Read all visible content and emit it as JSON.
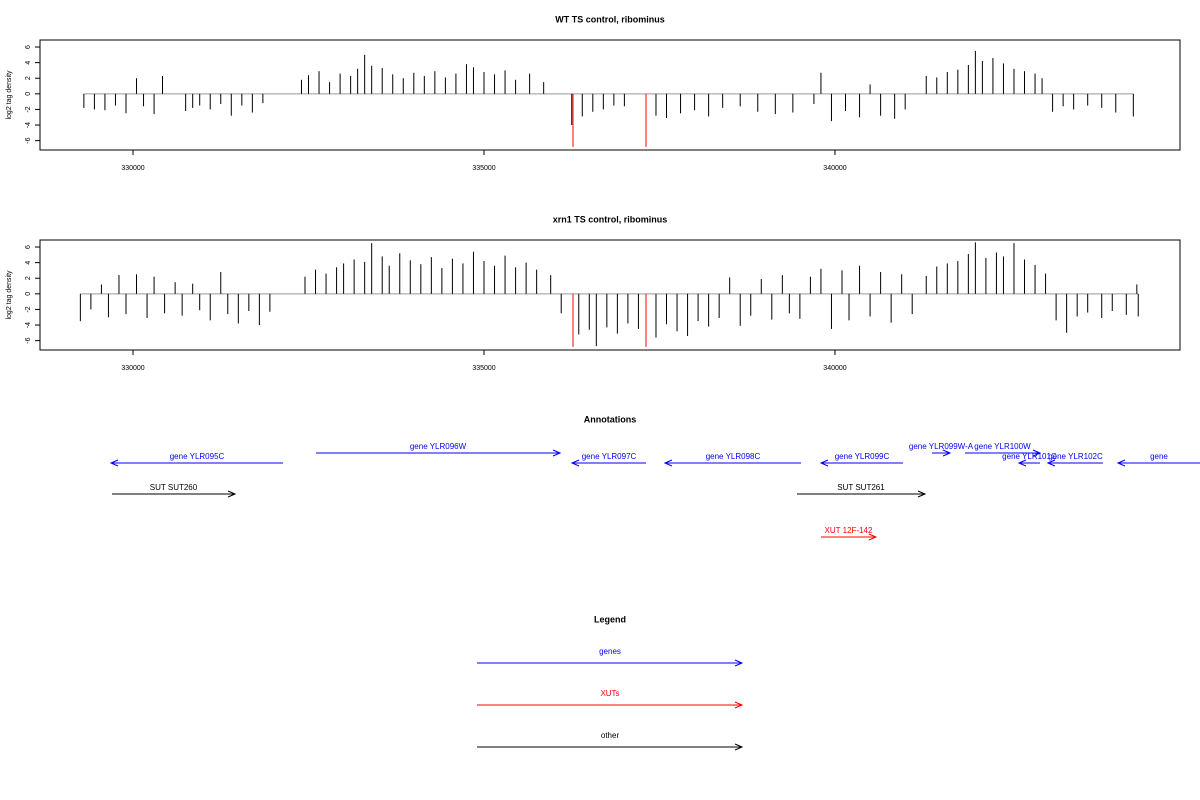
{
  "chart_data": [
    {
      "type": "bar",
      "title": "WT TS control, ribominus",
      "ylabel": "log2 tag density",
      "xlim": [
        328675,
        344915
      ],
      "ylim": [
        -7.2,
        6.9
      ],
      "xticks": [
        330000,
        335000,
        340000
      ],
      "yticks": [
        -6,
        -4,
        -2,
        0,
        2,
        4,
        6
      ],
      "series": [
        {
          "color": "#000000",
          "x": [
            329300,
            329450,
            329600,
            329750,
            329900,
            330050,
            330150,
            330300,
            330420,
            330750,
            330850,
            330950,
            331100,
            331250,
            331400,
            331550,
            331700,
            331850,
            332400,
            332500,
            332650,
            332800,
            332950,
            333100,
            333200,
            333300,
            333400,
            333550,
            333700,
            333850,
            334000,
            334150,
            334300,
            334450,
            334600,
            334750,
            334850,
            335000,
            335150,
            335300,
            335450,
            335650,
            335850,
            336250,
            336400,
            336550,
            336700,
            336850,
            337000,
            337450,
            337600,
            337800,
            338000,
            338200,
            338400,
            338650,
            338900,
            339150,
            339400,
            339700,
            339800,
            339950,
            340150,
            340350,
            340500,
            340650,
            340850,
            341000,
            341300,
            341450,
            341600,
            341750,
            341900,
            342000,
            342100,
            342250,
            342400,
            342550,
            342700,
            342850,
            342950,
            343100,
            343250,
            343400,
            343600,
            343800,
            344000,
            344250
          ],
          "values": [
            -1.8,
            -2,
            -2.1,
            -1.5,
            -2.5,
            2,
            -1.6,
            -2.6,
            2.3,
            -2.2,
            -1.8,
            -1.5,
            -2,
            -1.3,
            -2.8,
            -1.5,
            -2.4,
            -1.2,
            1.8,
            2.4,
            2.9,
            1.5,
            2.6,
            2.3,
            3.2,
            5,
            3.6,
            3.3,
            2.5,
            2,
            2.7,
            2.3,
            2.9,
            2.1,
            2.6,
            3.8,
            3.4,
            2.8,
            2.5,
            3,
            1.8,
            2.6,
            1.5,
            -4,
            -2.9,
            -2.3,
            -2,
            -1.5,
            -1.6,
            -2.8,
            -3.1,
            -2.5,
            -2.1,
            -2.9,
            -1.8,
            -1.6,
            -2.3,
            -2.6,
            -2.4,
            -1.3,
            2.7,
            -3.5,
            -2.2,
            -3,
            1.2,
            -2.8,
            -3.2,
            -2,
            2.3,
            2.1,
            2.8,
            3.1,
            3.7,
            5.5,
            4.2,
            4.6,
            3.9,
            3.2,
            2.9,
            2.6,
            2,
            -2.3,
            -1.6,
            -2,
            -1.5,
            -1.8,
            -2.4,
            -2.9
          ]
        },
        {
          "color": "#ff0000",
          "x": [
            336268,
            337308
          ],
          "values": [
            -6.8,
            -6.8
          ]
        }
      ]
    },
    {
      "type": "bar",
      "title": "xrn1 TS control, ribominus",
      "ylabel": "log2 tag density",
      "xlim": [
        328675,
        344915
      ],
      "ylim": [
        -7.2,
        6.9
      ],
      "xticks": [
        330000,
        335000,
        340000
      ],
      "yticks": [
        -6,
        -4,
        -2,
        0,
        2,
        4,
        6
      ],
      "series": [
        {
          "color": "#000000",
          "x": [
            329250,
            329400,
            329550,
            329650,
            329800,
            329900,
            330050,
            330200,
            330300,
            330450,
            330600,
            330700,
            330850,
            330950,
            331100,
            331250,
            331350,
            331500,
            331650,
            331800,
            331950,
            332450,
            332600,
            332750,
            332900,
            333000,
            333150,
            333300,
            333400,
            333550,
            333650,
            333800,
            333950,
            334100,
            334250,
            334400,
            334550,
            334700,
            334850,
            335000,
            335150,
            335300,
            335450,
            335600,
            335750,
            335950,
            336100,
            336350,
            336500,
            336600,
            336750,
            336900,
            337050,
            337200,
            337450,
            337600,
            337750,
            337900,
            338050,
            338200,
            338350,
            338500,
            338650,
            338800,
            338950,
            339100,
            339250,
            339350,
            339500,
            339650,
            339800,
            339950,
            340100,
            340200,
            340350,
            340500,
            340650,
            340800,
            340950,
            341100,
            341300,
            341450,
            341600,
            341750,
            341900,
            342000,
            342150,
            342300,
            342400,
            342550,
            342700,
            342850,
            343000,
            343150,
            343300,
            343450,
            343600,
            343800,
            343950,
            344150,
            344300,
            344320
          ],
          "values": [
            -3.5,
            -2,
            1.2,
            -3,
            2.4,
            -2.6,
            2.5,
            -3.1,
            2.2,
            -2.5,
            1.5,
            -2.8,
            1.3,
            -2.1,
            -3.4,
            2.8,
            -2.6,
            -3.8,
            -2.2,
            -4,
            -2.3,
            2.2,
            3.1,
            2.6,
            3.4,
            3.9,
            4.4,
            4.1,
            6.5,
            4.8,
            3.6,
            5.2,
            4.3,
            3.8,
            4.7,
            3.3,
            4.5,
            3.9,
            5.4,
            4.2,
            3.6,
            4.9,
            3.4,
            4,
            3.1,
            2.4,
            -2.5,
            -5.2,
            -4.6,
            -6.7,
            -4.3,
            -5.1,
            -3.8,
            -4.5,
            -5.6,
            -3.9,
            -4.8,
            -5.4,
            -3.5,
            -4.2,
            -3.1,
            2.1,
            -4.1,
            -2.8,
            1.9,
            -3.3,
            2.4,
            -2.5,
            -3.2,
            2.2,
            3.2,
            -4.5,
            3,
            -3.4,
            3.6,
            -2.9,
            2.8,
            -3.7,
            2.5,
            -2.6,
            2.3,
            3.5,
            3.9,
            4.2,
            5.1,
            6.6,
            4.6,
            5.3,
            4.8,
            6.5,
            4.4,
            3.7,
            2.6,
            -3.4,
            -5,
            -2.9,
            -2.4,
            -3.1,
            -2.2,
            -2.7,
            1.2,
            -2.9
          ]
        },
        {
          "color": "#ff0000",
          "x": [
            336268,
            337308
          ],
          "values": [
            -6.8,
            -6.8
          ]
        }
      ]
    }
  ],
  "annotations": {
    "title": "Annotations",
    "xlim": [
      328675,
      344915
    ],
    "features": [
      {
        "label": "gene YLR095C",
        "start": 332137,
        "end": 329687,
        "color": "#0000ff"
      },
      {
        "label": "gene YLR096W",
        "start": 332607,
        "end": 336083,
        "color": "#0000ff"
      },
      {
        "label": "gene YLR097C",
        "start": 337308,
        "end": 336254,
        "color": "#0000ff"
      },
      {
        "label": "gene YLR098C",
        "start": 339516,
        "end": 337578,
        "color": "#0000ff"
      },
      {
        "label": "gene YLR099C",
        "start": 340969,
        "end": 339801,
        "color": "#0000ff"
      },
      {
        "label": "gene YLR099W-A",
        "start": 341382,
        "end": 341638,
        "color": "#0000ff"
      },
      {
        "label": "gene YLR100W",
        "start": 341852,
        "end": 342920,
        "color": "#0000ff"
      },
      {
        "label": "gene YLR101C",
        "start": 342920,
        "end": 342621,
        "color": "#0000ff"
      },
      {
        "label": "gene YLR102C",
        "start": 343818,
        "end": 343034,
        "color": "#0000ff"
      },
      {
        "label": "gene",
        "start": 345200,
        "end": 344031,
        "color": "#0000ff"
      },
      {
        "label": "SUT SUT260",
        "start": 329701,
        "end": 331453,
        "color": "#000000"
      },
      {
        "label": "SUT SUT261",
        "start": 339459,
        "end": 341282,
        "color": "#000000"
      },
      {
        "label": "XUT 12F-142",
        "start": 339801,
        "end": 340584,
        "color": "#ff0000"
      }
    ]
  },
  "legend": {
    "title": "Legend",
    "entries": [
      {
        "label": "genes",
        "color": "#0000ff"
      },
      {
        "label": "XUTs",
        "color": "#ff0000"
      },
      {
        "label": "other",
        "color": "#000000"
      }
    ]
  }
}
